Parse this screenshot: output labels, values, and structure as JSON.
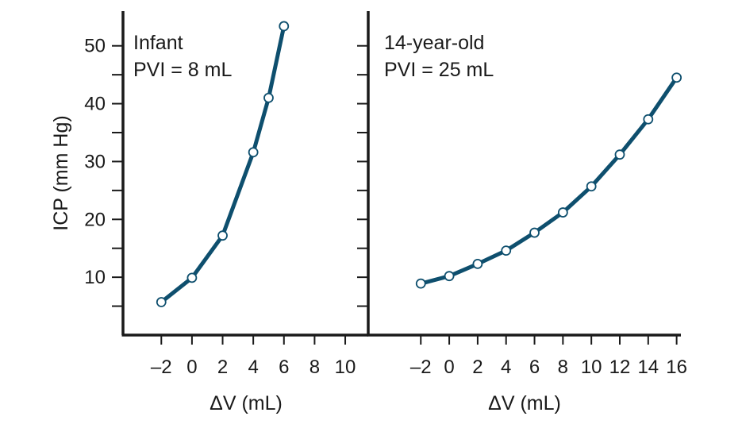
{
  "chart_data": [
    {
      "type": "line",
      "annotation": [
        "Infant",
        "PVI = 8 mL"
      ],
      "xlabel": "ΔV (mL)",
      "ylabel": "ICP (mm Hg)",
      "x_ticks": [
        "–2",
        "0",
        "2",
        "4",
        "6",
        "8",
        "10"
      ],
      "y_ticks": [
        "10",
        "20",
        "30",
        "40",
        "50"
      ],
      "xlim": [
        -4.5,
        11.5
      ],
      "ylim": [
        0,
        56
      ],
      "minor_y_ticks": [
        5,
        15,
        25,
        35,
        45
      ],
      "series": [
        {
          "x": [
            -2,
            0,
            2,
            4,
            5,
            6
          ],
          "y": [
            5.7,
            9.9,
            17.2,
            31.6,
            41.0,
            53.4
          ]
        }
      ]
    },
    {
      "type": "line",
      "annotation": [
        "14-year-old",
        "PVI = 25 mL"
      ],
      "xlabel": "ΔV (mL)",
      "ylabel": "",
      "x_ticks": [
        "–2",
        "0",
        "2",
        "4",
        "6",
        "8",
        "10",
        "12",
        "14",
        "16"
      ],
      "y_ticks": [],
      "xlim": [
        -5.7,
        16.3
      ],
      "ylim": [
        0,
        56
      ],
      "minor_y_ticks": [
        5,
        10,
        15,
        20,
        25,
        30,
        35,
        40,
        45,
        50
      ],
      "series": [
        {
          "x": [
            -2,
            0,
            2,
            4,
            6,
            8,
            10,
            12,
            14,
            16
          ],
          "y": [
            8.9,
            10.2,
            12.3,
            14.6,
            17.7,
            21.2,
            25.7,
            31.2,
            37.3,
            44.5
          ]
        }
      ]
    }
  ],
  "style": {
    "line_color": "#0e4f6e",
    "axis_color": "#1a1a1a",
    "marker_fill": "#ffffff"
  }
}
